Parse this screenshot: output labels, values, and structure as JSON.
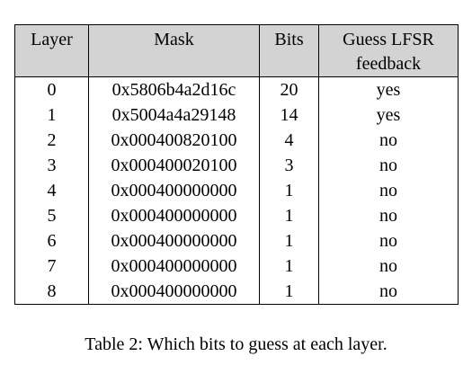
{
  "table": {
    "headers": {
      "layer": "Layer",
      "mask": "Mask",
      "bits": "Bits",
      "guess_line1": "Guess LFSR",
      "guess_line2": "feedback"
    },
    "rows": [
      {
        "layer": "0",
        "mask": "0x5806b4a2d16c",
        "bits": "20",
        "guess": "yes"
      },
      {
        "layer": "1",
        "mask": "0x5004a4a29148",
        "bits": "14",
        "guess": "yes"
      },
      {
        "layer": "2",
        "mask": "0x000400820100",
        "bits": "4",
        "guess": "no"
      },
      {
        "layer": "3",
        "mask": "0x000400020100",
        "bits": "3",
        "guess": "no"
      },
      {
        "layer": "4",
        "mask": "0x000400000000",
        "bits": "1",
        "guess": "no"
      },
      {
        "layer": "5",
        "mask": "0x000400000000",
        "bits": "1",
        "guess": "no"
      },
      {
        "layer": "6",
        "mask": "0x000400000000",
        "bits": "1",
        "guess": "no"
      },
      {
        "layer": "7",
        "mask": "0x000400000000",
        "bits": "1",
        "guess": "no"
      },
      {
        "layer": "8",
        "mask": "0x000400000000",
        "bits": "1",
        "guess": "no"
      }
    ]
  },
  "caption": "Table 2: Which bits to guess at each layer."
}
